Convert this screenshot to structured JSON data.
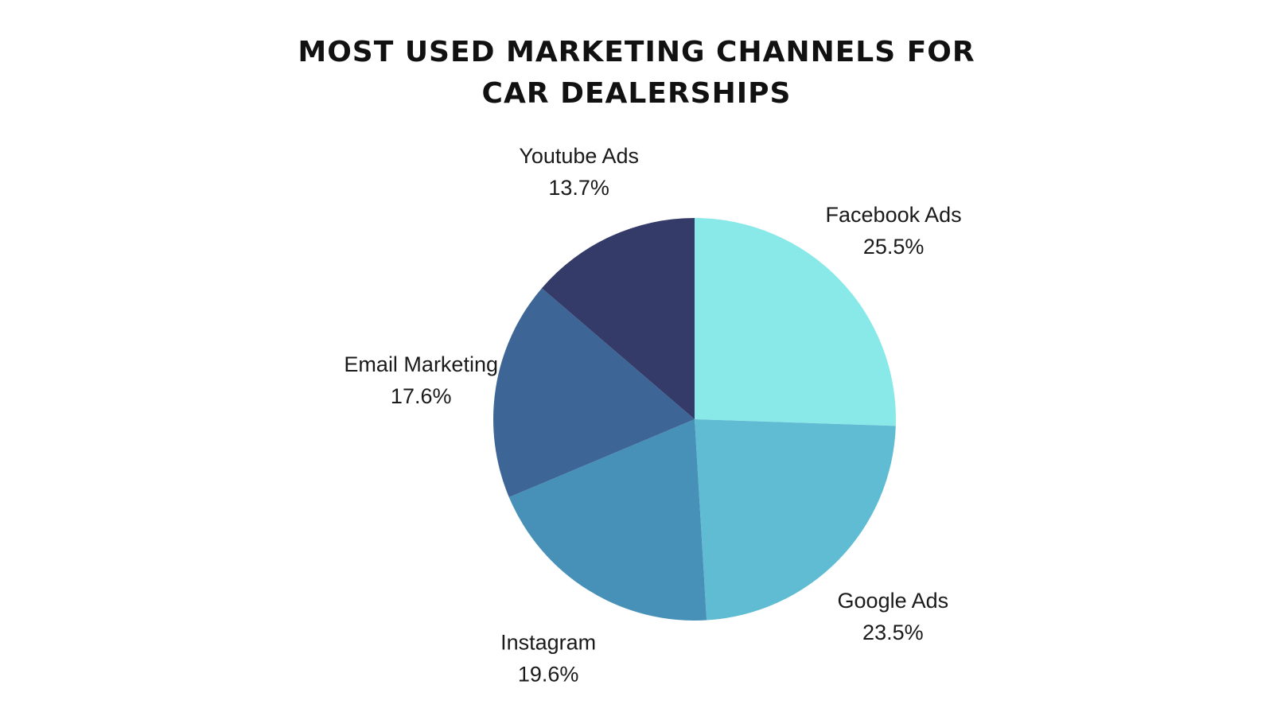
{
  "chart_data": {
    "type": "pie",
    "title_lines": [
      "MOST USED MARKETING CHANNELS FOR",
      "CAR DEALERSHIPS"
    ],
    "slices": [
      {
        "name": "Facebook Ads",
        "value": 25.5,
        "label": "25.5%",
        "color": "#89E9E8"
      },
      {
        "name": "Google Ads",
        "value": 23.5,
        "label": "23.5%",
        "color": "#5FBCD3"
      },
      {
        "name": "Instagram",
        "value": 19.6,
        "label": "19.6%",
        "color": "#4791B8"
      },
      {
        "name": "Email Marketing",
        "value": 17.6,
        "label": "17.6%",
        "color": "#3D6696"
      },
      {
        "name": "Youtube Ads",
        "value": 13.7,
        "label": "13.7%",
        "color": "#343B69"
      }
    ],
    "start_direction": "12 o'clock",
    "order": "clockwise",
    "legend": "none",
    "labels": "outside slices"
  }
}
